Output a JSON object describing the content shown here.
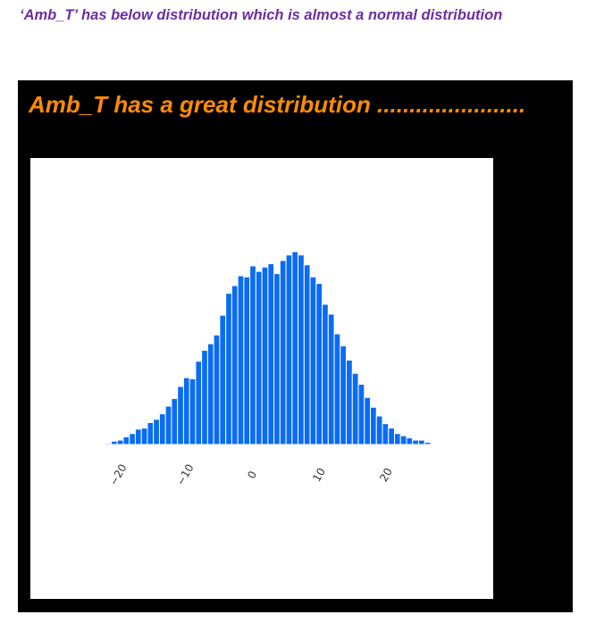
{
  "page": {
    "heading": "‘Amb_T’ has below distribution which is almost a normal distribution"
  },
  "slide": {
    "title": "Amb_T has a great distribution ......................."
  },
  "chart_data": {
    "type": "bar",
    "subtype": "histogram",
    "bar_color": "#0a6cf5",
    "x_ticks": [
      "−20",
      "−10",
      "0",
      "10",
      "20"
    ],
    "x_tick_values": [
      -20,
      -10,
      0,
      10,
      20
    ],
    "x_range": [
      -22.5,
      23
    ],
    "bin_width": 0.9,
    "bin_start": -22.4,
    "values": [
      1,
      3,
      4,
      7,
      10,
      14,
      15,
      20,
      23,
      28,
      35,
      42,
      53,
      61,
      60,
      76,
      86,
      92,
      100,
      118,
      138,
      145,
      154,
      153,
      163,
      158,
      162,
      165,
      156,
      168,
      173,
      176,
      173,
      164,
      153,
      147,
      128,
      119,
      101,
      90,
      77,
      65,
      55,
      43,
      34,
      26,
      19,
      15,
      10,
      8,
      6,
      4,
      4,
      2
    ],
    "ylim": [
      0,
      200
    ],
    "grid": false
  }
}
